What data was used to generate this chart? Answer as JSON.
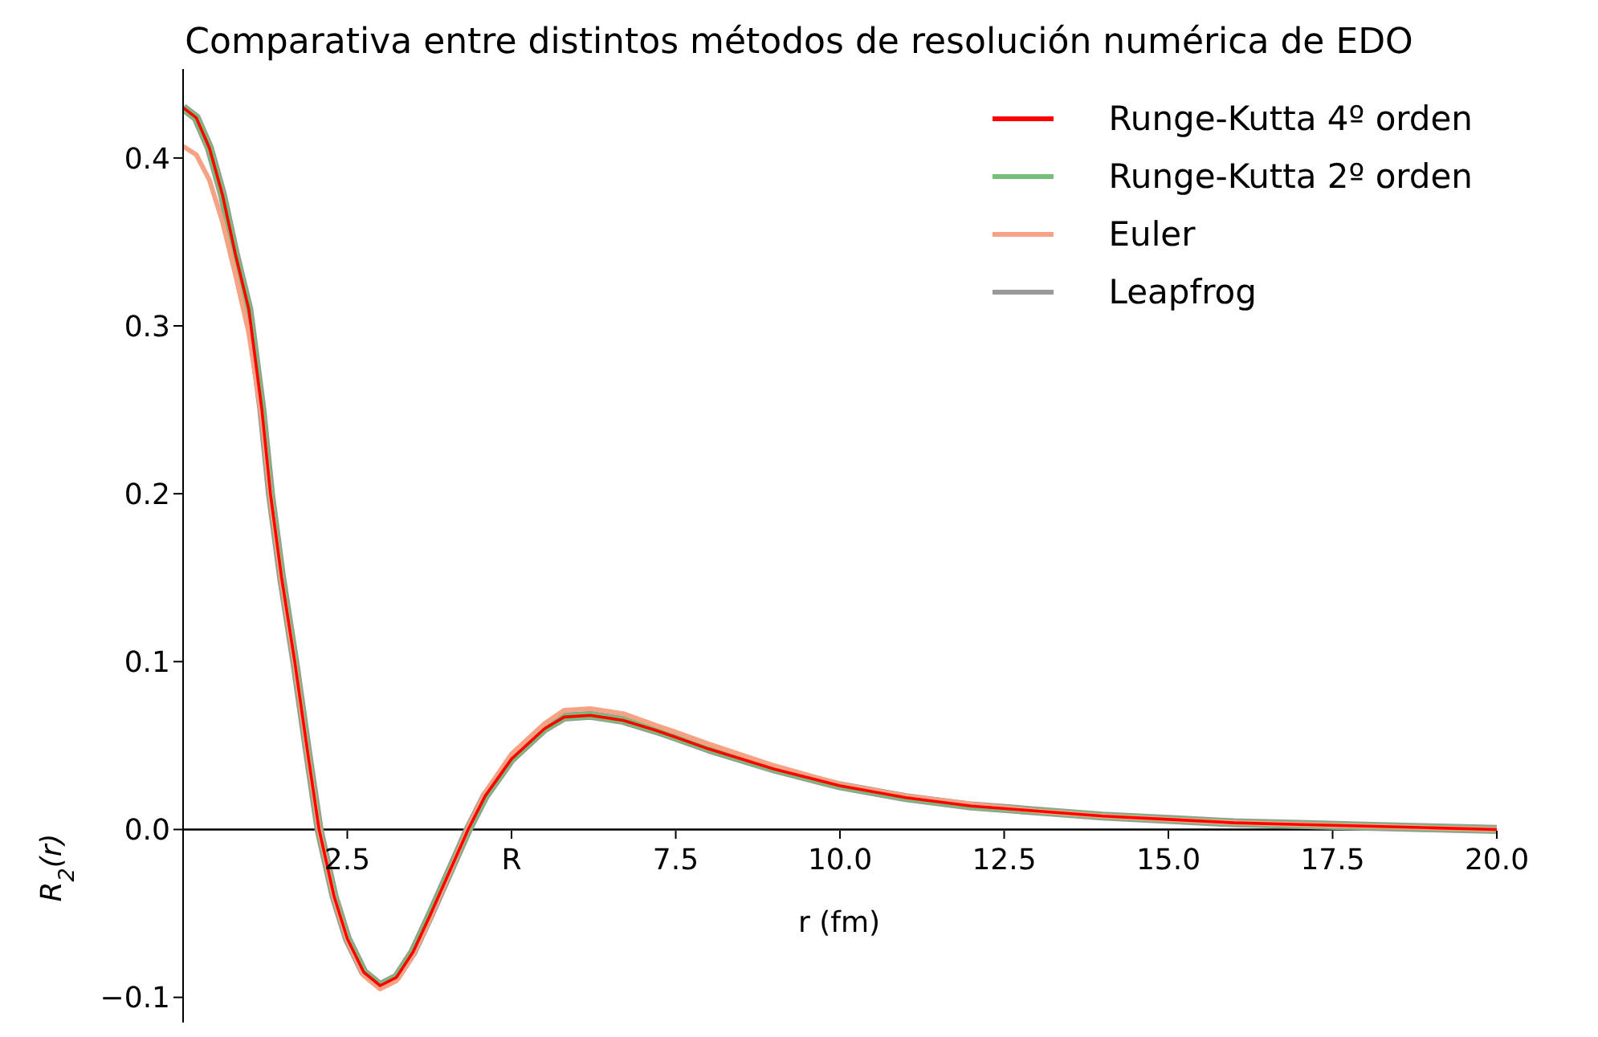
{
  "chart_data": {
    "type": "line",
    "title": "Comparativa entre distintos métodos de resolución numérica de EDO",
    "xlabel": "r (fm)",
    "ylabel": "R$_{2}$(r)",
    "x": [
      0,
      0.2,
      0.4,
      0.6,
      0.8,
      1.0,
      1.2,
      1.33,
      1.5,
      1.7,
      1.9,
      2.07,
      2.3,
      2.5,
      2.75,
      3.0,
      3.25,
      3.5,
      3.75,
      4.0,
      4.34,
      4.6,
      5.0,
      5.5,
      5.8,
      6.2,
      6.7,
      7.2,
      7.5,
      8.0,
      9.0,
      10.0,
      11.0,
      12.0,
      13.0,
      14.0,
      15.0,
      16.0,
      17.0,
      18.0,
      19.0,
      20.0
    ],
    "series": [
      {
        "name": "Runge-Kutta 4º orden",
        "color": "#ff0000",
        "values": [
          0.43,
          0.424,
          0.406,
          0.378,
          0.342,
          0.31,
          0.25,
          0.2,
          0.15,
          0.1,
          0.045,
          0,
          -0.04,
          -0.065,
          -0.085,
          -0.093,
          -0.088,
          -0.073,
          -0.052,
          -0.03,
          0,
          0.02,
          0.042,
          0.06,
          0.067,
          0.068,
          0.065,
          0.059,
          0.055,
          0.048,
          0.036,
          0.026,
          0.019,
          0.014,
          0.011,
          0.008,
          0.006,
          0.004,
          0.003,
          0.002,
          0.001,
          0
        ]
      },
      {
        "name": "Runge-Kutta 2º orden",
        "color": "#77bf77",
        "values": [
          0.43,
          0.424,
          0.406,
          0.378,
          0.342,
          0.31,
          0.25,
          0.2,
          0.15,
          0.1,
          0.045,
          0,
          -0.04,
          -0.065,
          -0.085,
          -0.093,
          -0.088,
          -0.073,
          -0.052,
          -0.03,
          0,
          0.02,
          0.042,
          0.06,
          0.067,
          0.068,
          0.065,
          0.059,
          0.055,
          0.048,
          0.036,
          0.026,
          0.019,
          0.014,
          0.011,
          0.008,
          0.006,
          0.004,
          0.003,
          0.002,
          0.001,
          0
        ]
      },
      {
        "name": "Euler",
        "color": "#f6a285",
        "values": [
          0.407,
          0.402,
          0.387,
          0.362,
          0.33,
          0.296,
          0.245,
          0.198,
          0.148,
          0.099,
          0.044,
          0,
          -0.041,
          -0.066,
          -0.087,
          -0.095,
          -0.09,
          -0.075,
          -0.054,
          -0.031,
          0.001,
          0.022,
          0.045,
          0.063,
          0.071,
          0.072,
          0.069,
          0.062,
          0.058,
          0.051,
          0.038,
          0.027,
          0.02,
          0.015,
          0.011,
          0.008,
          0.006,
          0.004,
          0.003,
          0.002,
          0.001,
          0
        ]
      },
      {
        "name": "Leapfrog",
        "color": "#999999",
        "values": [
          0.43,
          0.424,
          0.406,
          0.378,
          0.342,
          0.31,
          0.25,
          0.2,
          0.15,
          0.1,
          0.045,
          0,
          -0.04,
          -0.065,
          -0.085,
          -0.093,
          -0.088,
          -0.073,
          -0.052,
          -0.03,
          0,
          0.02,
          0.042,
          0.06,
          0.067,
          0.068,
          0.065,
          0.059,
          0.055,
          0.048,
          0.036,
          0.026,
          0.019,
          0.014,
          0.011,
          0.008,
          0.006,
          0.004,
          0.003,
          0.002,
          0.001,
          0
        ]
      }
    ],
    "xlim": [
      0,
      20
    ],
    "xticks": [
      2.5,
      {
        "value": 5,
        "label": "R"
      },
      7.5,
      {
        "value": 10,
        "label": "10.0"
      },
      12.5,
      {
        "value": 15,
        "label": "15.0"
      },
      17.5,
      {
        "value": 20,
        "label": "20.0"
      }
    ],
    "ylim": [
      -0.115,
      0.453
    ],
    "yticks": [
      {
        "value": -0.1,
        "label": "−0.1"
      },
      {
        "value": 0,
        "label": "0.0"
      },
      0.1,
      0.2,
      0.3,
      0.4
    ],
    "legend": "top right",
    "grid": false,
    "marker": "none",
    "line_style": "solid"
  }
}
